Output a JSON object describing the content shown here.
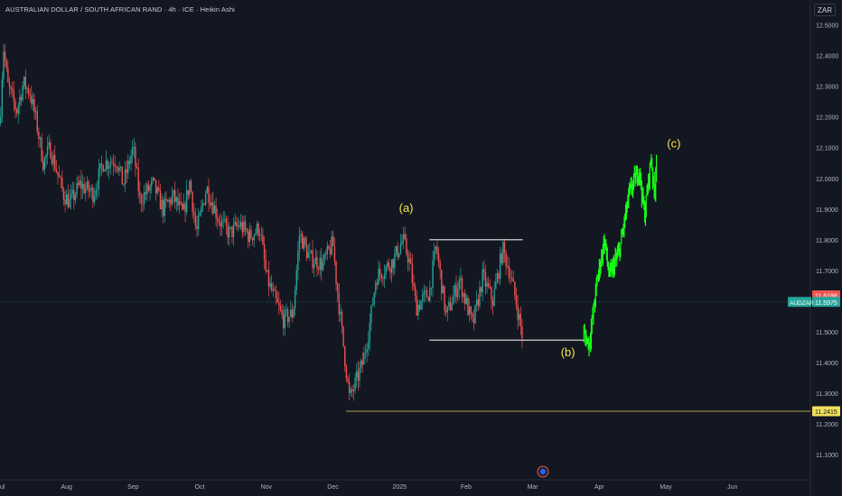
{
  "header": {
    "title": "AUSTRALIAN DOLLAR / SOUTH AFRICAN RAND · 4h · ICE · Heikin Ashi",
    "currency": "ZAR"
  },
  "colors": {
    "background": "#131722",
    "up": "#26a69a",
    "down": "#ef5350",
    "projection": "#19ff19",
    "annotation": "#f5e44a",
    "support_line": "#e6d84a"
  },
  "chart_data": {
    "type": "candlestick",
    "symbol": "AUDZAR",
    "ylim": [
      11.02,
      12.53
    ],
    "y_ticks": [
      "12.5000",
      "12.4000",
      "12.3000",
      "12.2000",
      "12.1000",
      "12.0000",
      "11.9000",
      "11.8000",
      "11.7000",
      "11.6000",
      "11.5000",
      "11.4000",
      "11.3000",
      "11.2000",
      "11.1000"
    ],
    "x_ticks": [
      {
        "label": "ul",
        "month": 0
      },
      {
        "label": "Aug",
        "month": 1
      },
      {
        "label": "Sep",
        "month": 2
      },
      {
        "label": "Oct",
        "month": 3
      },
      {
        "label": "Nov",
        "month": 4
      },
      {
        "label": "Dec",
        "month": 5
      },
      {
        "label": "2025",
        "month": 6
      },
      {
        "label": "Feb",
        "month": 7
      },
      {
        "label": "Mar",
        "month": 8
      },
      {
        "label": "Apr",
        "month": 9
      },
      {
        "label": "May",
        "month": 10
      },
      {
        "label": "Jun",
        "month": 11
      }
    ],
    "price_path": [
      [
        0.0,
        12.18
      ],
      [
        0.05,
        12.43
      ],
      [
        0.12,
        12.3
      ],
      [
        0.25,
        12.22
      ],
      [
        0.35,
        12.31
      ],
      [
        0.45,
        12.28
      ],
      [
        0.55,
        12.18
      ],
      [
        0.65,
        12.05
      ],
      [
        0.75,
        12.1
      ],
      [
        0.95,
        11.95
      ],
      [
        1.05,
        11.92
      ],
      [
        1.2,
        11.98
      ],
      [
        1.4,
        11.95
      ],
      [
        1.55,
        12.05
      ],
      [
        1.75,
        12.06
      ],
      [
        1.85,
        11.98
      ],
      [
        2.0,
        12.1
      ],
      [
        2.1,
        11.93
      ],
      [
        2.3,
        11.98
      ],
      [
        2.45,
        11.9
      ],
      [
        2.6,
        11.94
      ],
      [
        2.75,
        11.88
      ],
      [
        2.85,
        11.99
      ],
      [
        2.95,
        11.82
      ],
      [
        3.1,
        11.97
      ],
      [
        3.3,
        11.86
      ],
      [
        3.45,
        11.82
      ],
      [
        3.6,
        11.85
      ],
      [
        3.75,
        11.81
      ],
      [
        3.9,
        11.84
      ],
      [
        4.0,
        11.68
      ],
      [
        4.1,
        11.62
      ],
      [
        4.25,
        11.54
      ],
      [
        4.4,
        11.56
      ],
      [
        4.5,
        11.82
      ],
      [
        4.65,
        11.74
      ],
      [
        4.85,
        11.72
      ],
      [
        5.0,
        11.79
      ],
      [
        5.05,
        11.67
      ],
      [
        5.15,
        11.47
      ],
      [
        5.25,
        11.28
      ],
      [
        5.35,
        11.34
      ],
      [
        5.45,
        11.4
      ],
      [
        5.55,
        11.52
      ],
      [
        5.65,
        11.68
      ],
      [
        5.75,
        11.7
      ],
      [
        5.9,
        11.73
      ],
      [
        6.05,
        11.8
      ],
      [
        6.15,
        11.73
      ],
      [
        6.25,
        11.58
      ],
      [
        6.45,
        11.63
      ],
      [
        6.55,
        11.78
      ],
      [
        6.7,
        11.55
      ],
      [
        6.9,
        11.67
      ],
      [
        7.1,
        11.52
      ],
      [
        7.25,
        11.68
      ],
      [
        7.4,
        11.6
      ],
      [
        7.55,
        11.77
      ],
      [
        7.65,
        11.7
      ],
      [
        7.75,
        11.6
      ],
      [
        7.85,
        11.48
      ]
    ],
    "projection_path": [
      [
        8.77,
        11.49
      ],
      [
        8.85,
        11.46
      ],
      [
        8.97,
        11.67
      ],
      [
        9.08,
        11.8
      ],
      [
        9.15,
        11.68
      ],
      [
        9.3,
        11.76
      ],
      [
        9.45,
        11.95
      ],
      [
        9.6,
        12.03
      ],
      [
        9.68,
        11.88
      ],
      [
        9.78,
        12.07
      ],
      [
        9.83,
        11.94
      ],
      [
        9.86,
        12.08
      ]
    ],
    "last_price": "11.6188",
    "current_price": "11.5975",
    "support_level": "11.2415",
    "range_top": 11.8,
    "range_bottom": 11.473,
    "annotations": [
      {
        "text": "(a)",
        "month": 6.1,
        "price": 11.89
      },
      {
        "text": "(b)",
        "month": 8.53,
        "price": 11.42
      },
      {
        "text": "(c)",
        "month": 10.12,
        "price": 12.1
      }
    ]
  }
}
